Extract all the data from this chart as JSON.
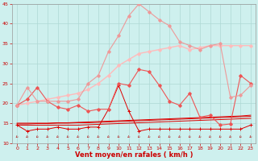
{
  "x": [
    0,
    1,
    2,
    3,
    4,
    5,
    6,
    7,
    8,
    9,
    10,
    11,
    12,
    13,
    14,
    15,
    16,
    17,
    18,
    19,
    20,
    21,
    22,
    23
  ],
  "line_flat1": [
    14.5,
    14.5,
    14.5,
    14.5,
    14.5,
    14.5,
    14.5,
    14.6,
    14.7,
    14.8,
    14.9,
    15.0,
    15.1,
    15.2,
    15.3,
    15.4,
    15.5,
    15.6,
    15.7,
    15.8,
    15.9,
    16.0,
    16.1,
    16.2
  ],
  "line_flat2": [
    14.8,
    14.8,
    14.9,
    14.9,
    15.0,
    15.0,
    15.1,
    15.1,
    15.2,
    15.3,
    15.4,
    15.5,
    15.6,
    15.7,
    15.8,
    15.9,
    16.0,
    16.1,
    16.2,
    16.3,
    16.4,
    16.5,
    16.6,
    16.7
  ],
  "line_flat3": [
    15.0,
    15.0,
    15.0,
    15.0,
    15.1,
    15.1,
    15.2,
    15.3,
    15.4,
    15.5,
    15.6,
    15.7,
    15.8,
    15.9,
    16.0,
    16.1,
    16.2,
    16.3,
    16.4,
    16.5,
    16.6,
    16.7,
    16.8,
    17.0
  ],
  "line_medium": [
    14.5,
    13.0,
    13.5,
    13.5,
    14.0,
    13.5,
    13.5,
    14.0,
    14.0,
    18.5,
    24.5,
    18.0,
    13.0,
    13.5,
    13.5,
    13.5,
    13.5,
    13.5,
    13.5,
    13.5,
    13.5,
    13.5,
    13.5,
    14.5
  ],
  "line_upper": [
    19.5,
    21.0,
    24.0,
    20.5,
    19.0,
    18.5,
    19.5,
    18.0,
    18.5,
    18.5,
    25.0,
    24.5,
    28.5,
    28.0,
    24.5,
    20.5,
    19.5,
    22.5,
    16.5,
    17.0,
    14.5,
    14.8,
    27.0,
    25.0
  ],
  "line_top_smooth": [
    19.5,
    20.0,
    20.5,
    21.0,
    21.5,
    22.0,
    22.5,
    23.5,
    25.0,
    27.0,
    29.5,
    31.0,
    32.5,
    33.0,
    33.5,
    34.0,
    34.5,
    33.5,
    34.0,
    34.5,
    34.5,
    34.5,
    34.5,
    34.5
  ],
  "line_top_spiky": [
    19.5,
    24.0,
    20.5,
    20.5,
    20.5,
    20.5,
    21.0,
    25.0,
    27.0,
    33.0,
    37.0,
    42.0,
    45.0,
    43.0,
    41.0,
    39.5,
    35.5,
    34.5,
    33.5,
    34.5,
    35.0,
    21.5,
    22.0,
    24.5
  ],
  "xlabel": "Vent moyen/en rafales ( km/h )",
  "ylim": [
    10,
    45
  ],
  "yticks": [
    10,
    15,
    20,
    25,
    30,
    35,
    40,
    45
  ],
  "xticks": [
    0,
    1,
    2,
    3,
    4,
    5,
    6,
    7,
    8,
    9,
    10,
    11,
    12,
    13,
    14,
    15,
    16,
    17,
    18,
    19,
    20,
    21,
    22,
    23
  ],
  "bg_color": "#cef0ee",
  "grid_color": "#aed8d4",
  "color_dark_red": "#dd0000",
  "color_medium_red": "#ee5555",
  "color_light_pink": "#ee9999",
  "color_very_light_pink": "#ffbbbb",
  "tick_color": "#cc0000",
  "label_color": "#cc0000",
  "arrow_color": "#bb3333"
}
